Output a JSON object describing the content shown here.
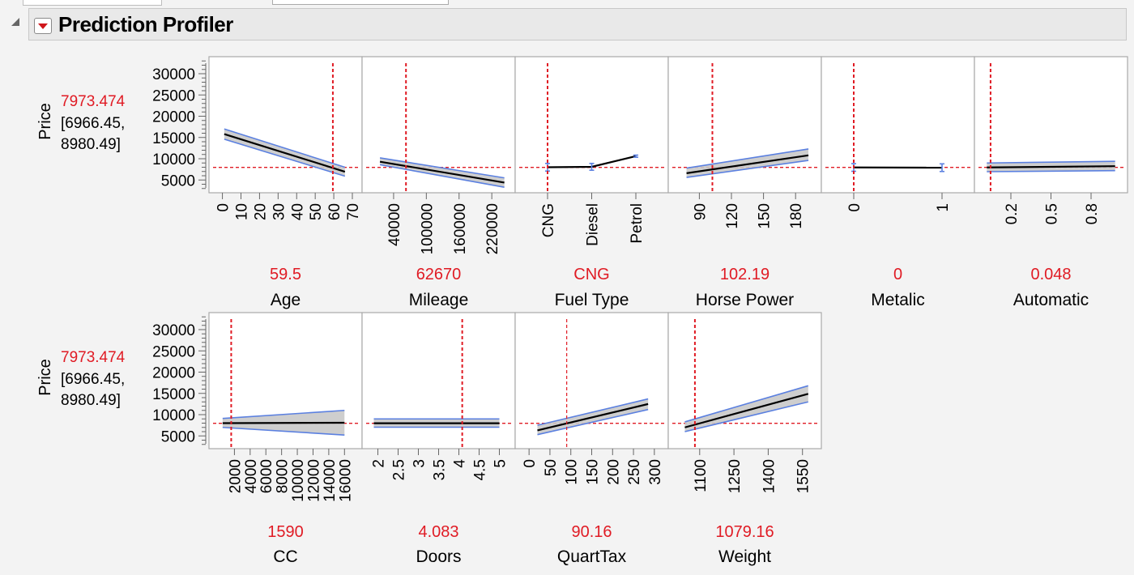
{
  "title": "Prediction Profiler",
  "response": {
    "name": "Price",
    "value": "7973.474",
    "ci_low": "[6966.45,",
    "ci_high": "8980.49]"
  },
  "chart_data": {
    "type": "line",
    "ylabel": "Price",
    "ylim": [
      2000,
      34000
    ],
    "yticks": [
      5000,
      10000,
      15000,
      20000,
      25000,
      30000
    ],
    "current_price": 7973.474,
    "colors": {
      "line": "#000000",
      "band": "#c9c9c9",
      "band_edge": "#5b80e0",
      "ref": "#e01b24",
      "value": "#e01b24"
    },
    "factors": [
      {
        "name": "Age",
        "value_label": "59.5",
        "kind": "continuous",
        "xlim": [
          -2,
          70
        ],
        "ticks": [
          "0",
          "10",
          "20",
          "30",
          "40",
          "50",
          "60",
          "70"
        ],
        "tick_values": [
          0,
          10,
          20,
          30,
          40,
          50,
          60,
          70
        ],
        "current": 59.5,
        "x": [
          1,
          66
        ],
        "y": [
          15800,
          6950
        ],
        "lo": [
          14600,
          5900
        ],
        "hi": [
          17000,
          8000
        ]
      },
      {
        "name": "Mileage",
        "value_label": "62670",
        "kind": "continuous",
        "xlim": [
          0,
          245000
        ],
        "ticks": [
          "40000",
          "100000",
          "160000",
          "220000"
        ],
        "tick_values": [
          40000,
          100000,
          160000,
          220000
        ],
        "current": 62670,
        "x": [
          15000,
          243000
        ],
        "y": [
          9300,
          4400
        ],
        "lo": [
          8600,
          3300
        ],
        "hi": [
          10200,
          5500
        ]
      },
      {
        "name": "Fuel Type",
        "value_label": "CNG",
        "kind": "categorical",
        "ticks": [
          "CNG",
          "Diesel",
          "Petrol"
        ],
        "current": "CNG",
        "points": [
          8000,
          8100,
          10600
        ],
        "err": [
          900,
          800,
          250
        ]
      },
      {
        "name": "Horse Power",
        "value_label": "102.19",
        "kind": "continuous",
        "xlim": [
          70,
          195
        ],
        "ticks": [
          "90",
          "120",
          "150",
          "180"
        ],
        "tick_values": [
          90,
          120,
          150,
          180
        ],
        "current": 102.19,
        "x": [
          78,
          192
        ],
        "y": [
          6600,
          10800
        ],
        "lo": [
          5600,
          9600
        ],
        "hi": [
          7800,
          12300
        ]
      },
      {
        "name": "Metalic",
        "value_label": "0",
        "kind": "categorical",
        "ticks": [
          "0",
          "1"
        ],
        "current": "0",
        "points": [
          7950,
          7900
        ],
        "err": [
          900,
          900
        ]
      },
      {
        "name": "Automatic",
        "value_label": "0.048",
        "kind": "continuous",
        "xlim": [
          0.0,
          1.0
        ],
        "ticks": [
          "0.2",
          "0.5",
          "0.8"
        ],
        "tick_values": [
          0.2,
          0.5,
          0.8
        ],
        "current": 0.048,
        "x": [
          0.02,
          0.98
        ],
        "y": [
          7950,
          8250
        ],
        "lo": [
          6950,
          7200
        ],
        "hi": [
          9000,
          9400
        ]
      },
      {
        "name": "CC",
        "value_label": "1590",
        "kind": "continuous",
        "xlim": [
          0,
          17000
        ],
        "ticks": [
          "2000",
          "4000",
          "6000",
          "8000",
          "10000",
          "12000",
          "14000",
          "16000"
        ],
        "tick_values": [
          2000,
          4000,
          6000,
          8000,
          10000,
          12000,
          14000,
          16000
        ],
        "current": 1590,
        "x": [
          500,
          16000
        ],
        "y": [
          8000,
          8100
        ],
        "lo": [
          7000,
          5200
        ],
        "hi": [
          9100,
          11000
        ]
      },
      {
        "name": "Doors",
        "value_label": "4.083",
        "kind": "continuous",
        "xlim": [
          1.85,
          5.15
        ],
        "ticks": [
          "2",
          "2.5",
          "3",
          "3.5",
          "4",
          "4.5",
          "5"
        ],
        "tick_values": [
          2,
          2.5,
          3,
          3.5,
          4,
          4.5,
          5
        ],
        "current": 4.083,
        "x": [
          1.9,
          5.0
        ],
        "y": [
          7980,
          7980
        ],
        "lo": [
          7050,
          7050
        ],
        "hi": [
          9000,
          9000
        ]
      },
      {
        "name": "QuartTax",
        "value_label": "90.16",
        "kind": "continuous",
        "xlim": [
          -10,
          310
        ],
        "ticks": [
          "0",
          "50",
          "100",
          "150",
          "200",
          "250",
          "300"
        ],
        "tick_values": [
          0,
          50,
          100,
          150,
          200,
          250,
          300
        ],
        "current": 90.16,
        "x": [
          20,
          285
        ],
        "y": [
          6300,
          12500
        ],
        "lo": [
          5300,
          11200
        ],
        "hi": [
          7500,
          13700
        ]
      },
      {
        "name": "Weight",
        "value_label": "1079.16",
        "kind": "continuous",
        "xlim": [
          1005,
          1590
        ],
        "ticks": [
          "1100",
          "1250",
          "1400",
          "1550"
        ],
        "tick_values": [
          1100,
          1250,
          1400,
          1550
        ],
        "current": 1079.16,
        "x": [
          1035,
          1575
        ],
        "y": [
          7000,
          14900
        ],
        "lo": [
          6000,
          13000
        ],
        "hi": [
          8300,
          16800
        ]
      }
    ]
  }
}
